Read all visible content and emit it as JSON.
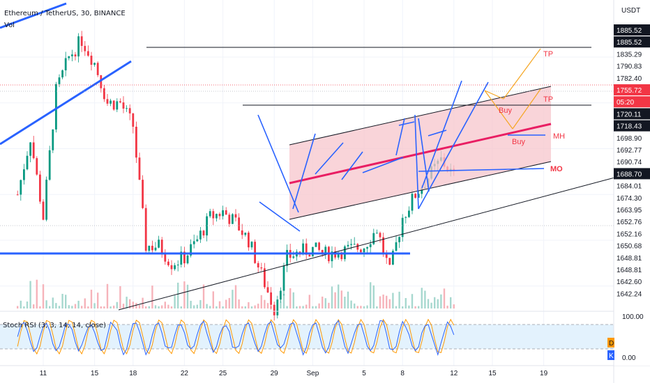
{
  "header": {
    "symbol_line": "Ethereum / TetherUS, 30, BINANCE",
    "volume_label": "Vol",
    "currency": "USDT"
  },
  "stoch": {
    "label": "Stoch RSI (3, 3, 14, 14, close)",
    "scale_top": "100.00",
    "scale_bottom": "0.00",
    "d_badge": "D",
    "k_badge": "K"
  },
  "price_axis": [
    {
      "label": "1885.52",
      "style": "dark"
    },
    {
      "label": "1885.52",
      "style": "dark"
    },
    {
      "label": "1835.29",
      "style": "blue"
    },
    {
      "label": "1790.83",
      "style": "blue"
    },
    {
      "label": "1782.40",
      "style": "blue"
    },
    {
      "label": "1755.72",
      "style": "red"
    },
    {
      "label": "05:20",
      "style": "red"
    },
    {
      "label": "1720.11",
      "style": "dark"
    },
    {
      "label": "1718.43",
      "style": "dark"
    },
    {
      "label": "1698.90",
      "style": "blue"
    },
    {
      "label": "1692.77",
      "style": "blue"
    },
    {
      "label": "1690.74",
      "style": "blue"
    },
    {
      "label": "1688.70",
      "style": "dark"
    },
    {
      "label": "1684.01",
      "style": "blue"
    },
    {
      "label": "1674.30",
      "style": "blue"
    },
    {
      "label": "1663.95",
      "style": "blue"
    },
    {
      "label": "1652.76",
      "style": "blue"
    },
    {
      "label": "1652.16",
      "style": "blue"
    },
    {
      "label": "1650.68",
      "style": "blue"
    },
    {
      "label": "1648.81",
      "style": "blue"
    },
    {
      "label": "1648.81",
      "style": "blue"
    },
    {
      "label": "1642.60",
      "style": "blue"
    },
    {
      "label": "1642.24",
      "style": "blue"
    }
  ],
  "time_axis": [
    "11",
    "15",
    "18",
    "22",
    "25",
    "29",
    "Sep",
    "5",
    "8",
    "12",
    "15",
    "19"
  ],
  "annotations": {
    "tp_upper": "TP",
    "tp_lower": "TP",
    "buy_1": "Buy",
    "buy_2": "Buy",
    "mh": "MH",
    "mo": "MO"
  },
  "colors": {
    "up_candle": "#089981",
    "down_candle": "#f23645",
    "drawing_blue": "#2962ff",
    "channel_fill": "#f7c6cc",
    "midline": "#e91e63",
    "arrow_orange": "#f5a623",
    "label_red": "#f23645",
    "stoch_k": "#2962ff",
    "stoch_d": "#ff9800",
    "stoch_band": "#e3f2fd"
  },
  "chart_data": {
    "type": "candlestick",
    "title": "Ethereum / TetherUS, 30, BINANCE",
    "interval": "30",
    "last_price": 1755.72,
    "price_levels": [
      1885.52,
      1835.29,
      1790.83,
      1782.4,
      1755.72,
      1720.11,
      1718.43,
      1698.9,
      1692.77,
      1690.74,
      1688.7,
      1684.01,
      1674.3,
      1663.95,
      1652.76,
      1652.16,
      1650.68,
      1648.81,
      1642.6,
      1642.24
    ],
    "x_ticks": [
      "11",
      "15",
      "18",
      "22",
      "25",
      "29",
      "Sep",
      "5",
      "8",
      "12",
      "15",
      "19"
    ],
    "price_path": [
      {
        "date": "Aug 9",
        "price": 1740
      },
      {
        "date": "Aug 10",
        "price": 1790
      },
      {
        "date": "Aug 11",
        "price": 1720
      },
      {
        "date": "Aug 12",
        "price": 1830
      },
      {
        "date": "Aug 13",
        "price": 1860
      },
      {
        "date": "Aug 14",
        "price": 1875
      },
      {
        "date": "Aug 15",
        "price": 1855
      },
      {
        "date": "Aug 16",
        "price": 1820
      },
      {
        "date": "Aug 17",
        "price": 1820
      },
      {
        "date": "Aug 18",
        "price": 1800
      },
      {
        "date": "Aug 19",
        "price": 1695
      },
      {
        "date": "Aug 20",
        "price": 1695
      },
      {
        "date": "Aug 21",
        "price": 1680
      },
      {
        "date": "Aug 22",
        "price": 1685
      },
      {
        "date": "Aug 23",
        "price": 1700
      },
      {
        "date": "Aug 24",
        "price": 1720
      },
      {
        "date": "Aug 25",
        "price": 1725
      },
      {
        "date": "Aug 26",
        "price": 1715
      },
      {
        "date": "Aug 27",
        "price": 1700
      },
      {
        "date": "Aug 28",
        "price": 1670
      },
      {
        "date": "Aug 29",
        "price": 1640
      },
      {
        "date": "Aug 30",
        "price": 1685
      },
      {
        "date": "Aug 31",
        "price": 1690
      },
      {
        "date": "Sep 1",
        "price": 1692
      },
      {
        "date": "Sep 2",
        "price": 1688
      },
      {
        "date": "Sep 3",
        "price": 1690
      },
      {
        "date": "Sep 4",
        "price": 1692
      },
      {
        "date": "Sep 5",
        "price": 1695
      },
      {
        "date": "Sep 6",
        "price": 1710
      },
      {
        "date": "Sep 7",
        "price": 1672
      },
      {
        "date": "Sep 8",
        "price": 1720
      },
      {
        "date": "Sep 9",
        "price": 1740
      },
      {
        "date": "Sep 10",
        "price": 1755
      },
      {
        "date": "Sep 11",
        "price": 1770
      },
      {
        "date": "Sep 12",
        "price": 1756
      }
    ]
  }
}
